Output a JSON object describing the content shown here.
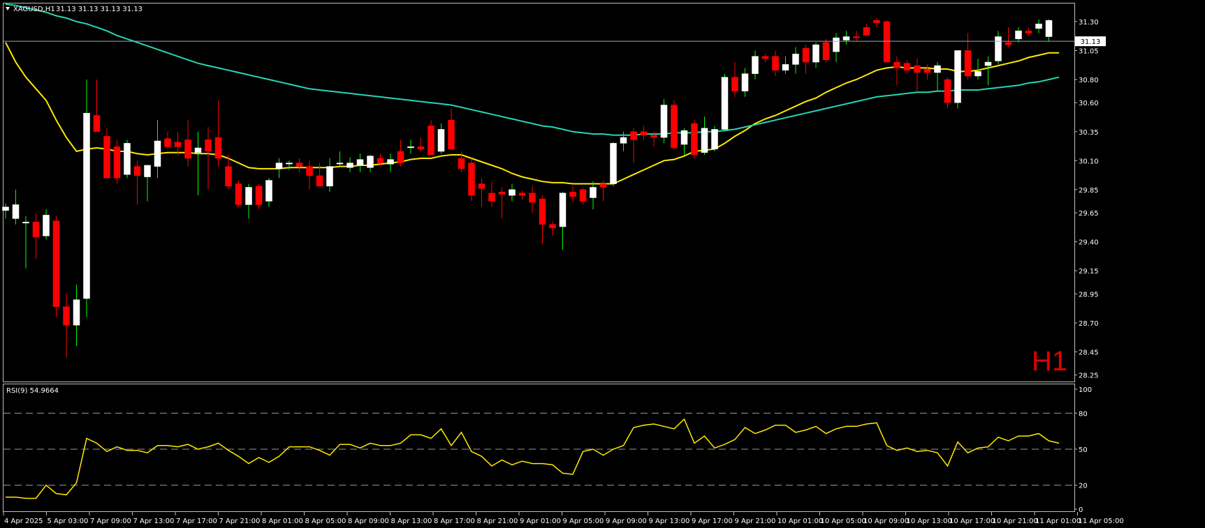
{
  "chart_data": [
    {
      "type": "candlestick",
      "symbol_label": "XAGUSD,H1",
      "ohlc_label": "31.13 31.13 31.13 31.13",
      "timeframe_badge": "H1",
      "current_price": 31.13,
      "current_price_label": "31.13",
      "ylim": [
        28.2,
        31.45
      ],
      "yticks": [
        "31.30",
        "31.05",
        "30.80",
        "30.60",
        "30.35",
        "30.10",
        "29.85",
        "29.65",
        "29.40",
        "29.15",
        "28.95",
        "28.70",
        "28.45",
        "28.25"
      ],
      "x_tick_labels": [
        "4 Apr 2025",
        "5 Apr 03:00",
        "7 Apr 09:00",
        "7 Apr 13:00",
        "7 Apr 17:00",
        "7 Apr 21:00",
        "8 Apr 01:00",
        "8 Apr 05:00",
        "8 Apr 09:00",
        "8 Apr 13:00",
        "8 Apr 17:00",
        "8 Apr 21:00",
        "9 Apr 01:00",
        "9 Apr 05:00",
        "9 Apr 09:00",
        "9 Apr 13:00",
        "9 Apr 17:00",
        "9 Apr 21:00",
        "10 Apr 01:00",
        "10 Apr 05:00",
        "10 Apr 09:00",
        "10 Apr 13:00",
        "10 Apr 17:00",
        "10 Apr 21:00",
        "11 Apr 01:00",
        "11 Apr 05:00"
      ],
      "candles": [
        [
          29.67,
          29.73,
          29.6,
          29.7
        ],
        [
          29.6,
          29.85,
          29.55,
          29.72
        ],
        [
          29.57,
          29.62,
          29.17,
          29.57
        ],
        [
          29.57,
          29.65,
          29.25,
          29.44
        ],
        [
          29.45,
          29.68,
          29.42,
          29.63
        ],
        [
          29.58,
          29.62,
          28.75,
          28.84
        ],
        [
          28.84,
          28.95,
          28.4,
          28.68
        ],
        [
          28.68,
          29.03,
          28.5,
          28.9
        ],
        [
          28.91,
          30.8,
          28.75,
          30.51
        ],
        [
          30.49,
          30.8,
          30.35,
          30.35
        ],
        [
          30.31,
          30.38,
          29.95,
          29.95
        ],
        [
          30.22,
          30.28,
          29.9,
          29.95
        ],
        [
          29.98,
          30.28,
          29.95,
          30.25
        ],
        [
          30.05,
          30.1,
          29.72,
          29.97
        ],
        [
          29.96,
          30.05,
          29.75,
          30.06
        ],
        [
          30.05,
          30.45,
          29.95,
          30.27
        ],
        [
          30.29,
          30.35,
          30.2,
          30.22
        ],
        [
          30.26,
          30.35,
          30.15,
          30.22
        ],
        [
          30.28,
          30.45,
          30.05,
          30.12
        ],
        [
          30.17,
          30.35,
          29.8,
          30.21
        ],
        [
          30.28,
          30.39,
          29.85,
          30.18
        ],
        [
          30.3,
          30.62,
          30.05,
          30.12
        ],
        [
          30.05,
          30.15,
          29.85,
          29.88
        ],
        [
          29.9,
          29.93,
          29.7,
          29.72
        ],
        [
          29.72,
          29.9,
          29.6,
          29.87
        ],
        [
          29.88,
          29.9,
          29.68,
          29.72
        ],
        [
          29.75,
          29.95,
          29.7,
          29.93
        ],
        [
          30.03,
          30.12,
          29.95,
          30.08
        ],
        [
          30.08,
          30.1,
          30.02,
          30.08
        ],
        [
          30.08,
          30.12,
          30.0,
          30.05
        ],
        [
          30.05,
          30.1,
          29.85,
          29.97
        ],
        [
          29.97,
          30.08,
          29.88,
          29.88
        ],
        [
          29.88,
          30.12,
          29.83,
          30.05
        ],
        [
          30.08,
          30.18,
          30.05,
          30.08
        ],
        [
          30.04,
          30.13,
          30.0,
          30.08
        ],
        [
          30.06,
          30.16,
          30.0,
          30.11
        ],
        [
          30.04,
          30.15,
          30.0,
          30.14
        ],
        [
          30.12,
          30.16,
          30.05,
          30.08
        ],
        [
          30.07,
          30.16,
          30.0,
          30.11
        ],
        [
          30.18,
          30.28,
          30.05,
          30.08
        ],
        [
          30.22,
          30.28,
          30.16,
          30.22
        ],
        [
          30.22,
          30.3,
          30.18,
          30.2
        ],
        [
          30.4,
          30.45,
          30.15,
          30.15
        ],
        [
          30.18,
          30.42,
          30.16,
          30.37
        ],
        [
          30.45,
          30.55,
          30.2,
          30.2
        ],
        [
          30.12,
          30.18,
          30.0,
          30.03
        ],
        [
          30.08,
          30.12,
          29.75,
          29.8
        ],
        [
          29.9,
          29.95,
          29.7,
          29.86
        ],
        [
          29.82,
          29.92,
          29.7,
          29.75
        ],
        [
          29.83,
          29.87,
          29.6,
          29.81
        ],
        [
          29.8,
          29.9,
          29.75,
          29.85
        ],
        [
          29.82,
          29.84,
          29.76,
          29.8
        ],
        [
          29.82,
          29.88,
          29.65,
          29.74
        ],
        [
          29.77,
          29.8,
          29.38,
          29.55
        ],
        [
          29.55,
          29.58,
          29.45,
          29.52
        ],
        [
          29.53,
          29.83,
          29.33,
          29.82
        ],
        [
          29.83,
          29.88,
          29.74,
          29.79
        ],
        [
          29.85,
          29.87,
          29.72,
          29.75
        ],
        [
          29.78,
          29.92,
          29.68,
          29.87
        ],
        [
          29.9,
          29.93,
          29.75,
          29.87
        ],
        [
          29.9,
          30.26,
          29.88,
          30.25
        ],
        [
          30.25,
          30.35,
          30.18,
          30.3
        ],
        [
          30.35,
          30.38,
          30.08,
          30.28
        ],
        [
          30.35,
          30.4,
          30.28,
          30.32
        ],
        [
          30.32,
          30.35,
          30.22,
          30.3
        ],
        [
          30.3,
          30.63,
          30.25,
          30.58
        ],
        [
          30.58,
          30.62,
          30.2,
          30.21
        ],
        [
          30.24,
          30.38,
          30.15,
          30.36
        ],
        [
          30.42,
          30.45,
          30.12,
          30.15
        ],
        [
          30.17,
          30.48,
          30.15,
          30.38
        ],
        [
          30.2,
          30.4,
          30.18,
          30.37
        ],
        [
          30.37,
          30.85,
          30.35,
          30.82
        ],
        [
          30.82,
          30.95,
          30.65,
          30.7
        ],
        [
          30.7,
          30.9,
          30.65,
          30.85
        ],
        [
          30.85,
          31.05,
          30.8,
          31.0
        ],
        [
          31.0,
          31.02,
          30.95,
          30.98
        ],
        [
          31.0,
          31.05,
          30.83,
          30.88
        ],
        [
          30.88,
          31.0,
          30.85,
          30.93
        ],
        [
          30.93,
          31.08,
          30.85,
          31.02
        ],
        [
          31.07,
          31.1,
          30.85,
          30.95
        ],
        [
          30.95,
          31.12,
          30.9,
          31.1
        ],
        [
          31.12,
          31.15,
          30.95,
          30.97
        ],
        [
          31.04,
          31.2,
          30.95,
          31.16
        ],
        [
          31.14,
          31.22,
          31.1,
          31.17
        ],
        [
          31.17,
          31.22,
          31.13,
          31.16
        ],
        [
          31.25,
          31.28,
          31.18,
          31.18
        ],
        [
          31.31,
          31.33,
          31.25,
          31.29
        ],
        [
          31.3,
          31.31,
          30.95,
          30.95
        ],
        [
          30.95,
          31.0,
          30.75,
          30.9
        ],
        [
          30.94,
          30.97,
          30.85,
          30.88
        ],
        [
          30.92,
          30.98,
          30.7,
          30.86
        ],
        [
          30.89,
          30.93,
          30.8,
          30.86
        ],
        [
          30.86,
          30.95,
          30.7,
          30.92
        ],
        [
          30.8,
          30.82,
          30.55,
          30.6
        ],
        [
          30.6,
          31.05,
          30.55,
          31.05
        ],
        [
          31.05,
          31.2,
          30.8,
          30.83
        ],
        [
          30.83,
          30.98,
          30.8,
          30.87
        ],
        [
          30.92,
          31.0,
          30.75,
          30.95
        ],
        [
          30.96,
          31.22,
          30.93,
          31.17
        ],
        [
          31.12,
          31.25,
          31.08,
          31.1
        ],
        [
          31.15,
          31.25,
          31.12,
          31.22
        ],
        [
          31.22,
          31.25,
          31.18,
          31.2
        ],
        [
          31.24,
          31.32,
          31.2,
          31.28
        ],
        [
          31.17,
          31.32,
          31.13,
          31.31
        ]
      ],
      "series": [
        {
          "color": "#ffea00",
          "values": [
            31.12,
            30.95,
            30.82,
            30.72,
            30.62,
            30.45,
            30.3,
            30.18,
            30.2,
            30.21,
            30.2,
            30.18,
            30.18,
            30.16,
            30.15,
            30.16,
            30.17,
            30.17,
            30.17,
            30.16,
            30.16,
            30.15,
            30.12,
            30.08,
            30.04,
            30.03,
            30.03,
            30.03,
            30.04,
            30.04,
            30.04,
            30.04,
            30.04,
            30.05,
            30.05,
            30.06,
            30.06,
            30.07,
            30.08,
            30.09,
            30.11,
            30.12,
            30.12,
            30.14,
            30.15,
            30.15,
            30.12,
            30.09,
            30.06,
            30.03,
            29.99,
            29.96,
            29.94,
            29.92,
            29.91,
            29.91,
            29.9,
            29.9,
            29.9,
            29.9,
            29.9,
            29.94,
            29.98,
            30.02,
            30.06,
            30.1,
            30.11,
            30.14,
            30.18,
            30.19,
            30.2,
            30.25,
            30.31,
            30.36,
            30.42,
            30.46,
            30.49,
            30.53,
            30.57,
            30.61,
            30.64,
            30.69,
            30.73,
            30.77,
            30.8,
            30.84,
            30.88,
            30.9,
            30.91,
            30.9,
            30.9,
            30.9,
            30.89,
            30.89,
            30.87,
            30.87,
            30.88,
            30.9,
            30.92,
            30.94,
            30.96,
            30.99,
            31.01,
            31.03,
            31.03
          ]
        },
        {
          "color": "#26d6b4",
          "values": [
            31.45,
            31.44,
            31.42,
            31.4,
            31.38,
            31.35,
            31.33,
            31.3,
            31.28,
            31.25,
            31.22,
            31.18,
            31.15,
            31.12,
            31.09,
            31.06,
            31.03,
            31.0,
            30.97,
            30.94,
            30.92,
            30.9,
            30.88,
            30.86,
            30.84,
            30.82,
            30.8,
            30.78,
            30.76,
            30.74,
            30.72,
            30.71,
            30.7,
            30.69,
            30.68,
            30.67,
            30.66,
            30.65,
            30.64,
            30.63,
            30.62,
            30.61,
            30.6,
            30.59,
            30.58,
            30.56,
            30.54,
            30.52,
            30.5,
            30.48,
            30.46,
            30.44,
            30.42,
            30.4,
            30.39,
            30.37,
            30.35,
            30.34,
            30.33,
            30.33,
            30.32,
            30.32,
            30.32,
            30.33,
            30.33,
            30.33,
            30.34,
            30.34,
            30.34,
            30.35,
            30.35,
            30.36,
            30.37,
            30.39,
            30.41,
            30.43,
            30.45,
            30.47,
            30.49,
            30.51,
            30.53,
            30.55,
            30.57,
            30.59,
            30.61,
            30.63,
            30.65,
            30.66,
            30.67,
            30.68,
            30.69,
            30.69,
            30.7,
            30.7,
            30.71,
            30.71,
            30.71,
            30.72,
            30.73,
            30.74,
            30.75,
            30.77,
            30.78,
            30.8,
            30.82
          ]
        }
      ]
    },
    {
      "type": "line",
      "indicator_label": "RSI(9) 54.9664",
      "ylim": [
        0,
        100
      ],
      "yticks": [
        "100",
        "80",
        "50",
        "20",
        "0"
      ],
      "levels": [
        80,
        50,
        20
      ],
      "series": [
        {
          "color": "#ffea00",
          "values": [
            10,
            10,
            9,
            9,
            20,
            13,
            12,
            22,
            59,
            55,
            48,
            52,
            49,
            49,
            47,
            53,
            53,
            52,
            54,
            50,
            52,
            55,
            49,
            44,
            38,
            43,
            39,
            44,
            52,
            52,
            52,
            49,
            45,
            54,
            54,
            51,
            55,
            53,
            53,
            55,
            62,
            62,
            59,
            67,
            53,
            64,
            48,
            44,
            36,
            41,
            37,
            40,
            38,
            38,
            37,
            30,
            29,
            48,
            50,
            45,
            50,
            53,
            68,
            70,
            71,
            69,
            67,
            75,
            55,
            61,
            51,
            54,
            58,
            68,
            63,
            66,
            70,
            70,
            64,
            66,
            69,
            63,
            67,
            69,
            69,
            71,
            72,
            53,
            49,
            51,
            48,
            49,
            47,
            36,
            56,
            47,
            51,
            52,
            60,
            57,
            61,
            61,
            63,
            57,
            55
          ]
        }
      ]
    }
  ]
}
